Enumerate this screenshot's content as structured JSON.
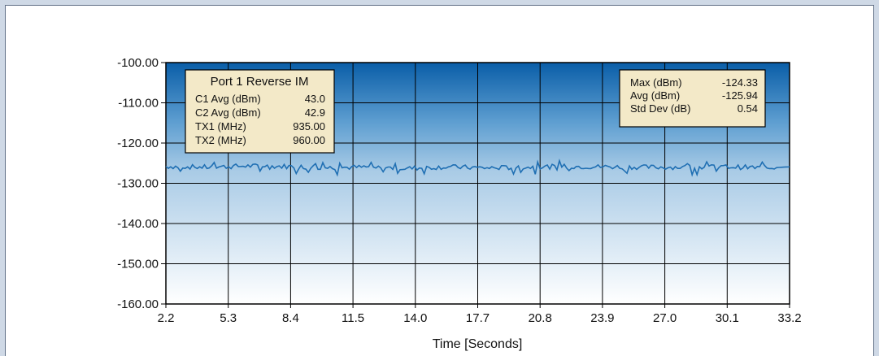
{
  "chart_data": {
    "type": "line",
    "title": "",
    "xlabel": "Time [Seconds]",
    "ylabel": "",
    "xlim": [
      2.2,
      33.2
    ],
    "ylim": [
      -160,
      -100
    ],
    "x_ticks": [
      "2.2",
      "5.3",
      "8.4",
      "11.5",
      "14.0",
      "17.7",
      "20.8",
      "23.9",
      "27.0",
      "30.1",
      "33.2"
    ],
    "y_ticks": [
      "-100.00",
      "-110.00",
      "-120.00",
      "-130.00",
      "-140.00",
      "-150.00",
      "-160.00"
    ],
    "grid": true,
    "series": [
      {
        "name": "",
        "color": "#1f6fb3",
        "x": [
          2.2,
          4.2,
          6.2,
          8.2,
          10.2,
          12.2,
          14.2,
          16.2,
          18.2,
          20.2,
          22.2,
          24.2,
          26.2,
          28.2,
          30.2,
          32.2,
          33.2
        ],
        "y": [
          -125.8,
          -126.0,
          -125.7,
          -125.8,
          -126.1,
          -126.0,
          -126.3,
          -125.9,
          -126.2,
          -126.0,
          -125.8,
          -125.9,
          -126.0,
          -126.0,
          -125.9,
          -126.2,
          -125.9
        ]
      }
    ],
    "info_box_left": {
      "title": "Port 1 Reverse IM",
      "rows": [
        {
          "label": "C1 Avg (dBm)",
          "value": "43.0"
        },
        {
          "label": "C2 Avg (dBm)",
          "value": "42.9"
        },
        {
          "label": "TX1 (MHz)",
          "value": "935.00"
        },
        {
          "label": "TX2 (MHz)",
          "value": "960.00"
        }
      ]
    },
    "info_box_right": {
      "rows": [
        {
          "label": "Max (dBm)",
          "value": "-124.33"
        },
        {
          "label": "Avg (dBm)",
          "value": "-125.94"
        },
        {
          "label": "Std Dev (dB)",
          "value": "0.54"
        }
      ]
    },
    "colors": {
      "plot_top": "#0a5ea8",
      "plot_bottom": "#ffffff",
      "line": "#1f6fb3",
      "box_fill": "#f3e9c8"
    }
  }
}
